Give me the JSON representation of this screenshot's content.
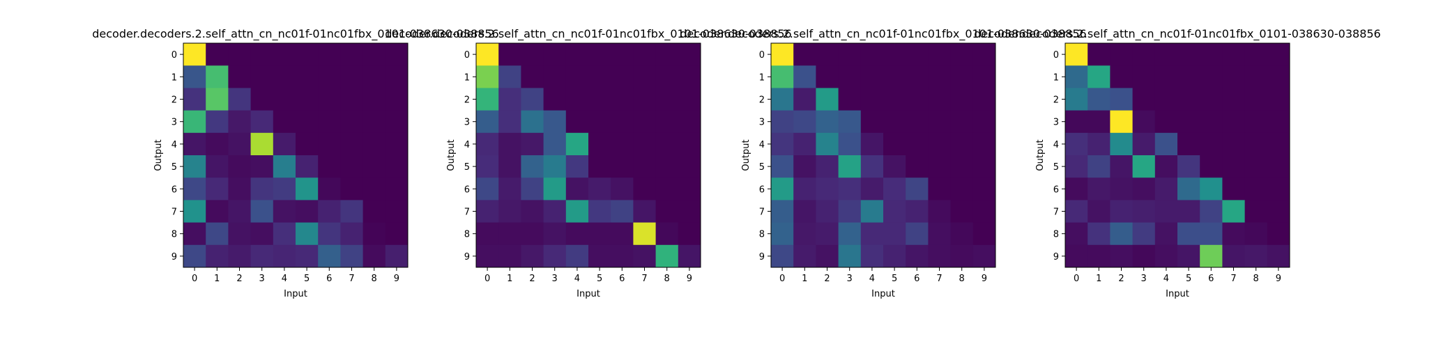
{
  "chart_data": [
    {
      "type": "heatmap",
      "title": "decoder.decoders.2.self_attn_cn_nc01f-01nc01fbx_0101-038630-038856",
      "xlabel": "Input",
      "ylabel": "Output",
      "x_ticks": [
        "0",
        "1",
        "2",
        "3",
        "4",
        "5",
        "6",
        "7",
        "8",
        "9"
      ],
      "y_ticks": [
        "0",
        "1",
        "2",
        "3",
        "4",
        "5",
        "6",
        "7",
        "8",
        "9"
      ],
      "colormap": "viridis",
      "vmin": 0,
      "vmax": 1,
      "values": [
        [
          1.0,
          0,
          0,
          0,
          0,
          0,
          0,
          0,
          0,
          0
        ],
        [
          0.27,
          0.7,
          0,
          0,
          0,
          0,
          0,
          0,
          0,
          0
        ],
        [
          0.15,
          0.74,
          0.16,
          0,
          0,
          0,
          0,
          0,
          0,
          0
        ],
        [
          0.67,
          0.17,
          0.07,
          0.12,
          0,
          0,
          0,
          0,
          0,
          0
        ],
        [
          0.06,
          0.03,
          0.05,
          0.88,
          0.08,
          0,
          0,
          0,
          0,
          0
        ],
        [
          0.45,
          0.06,
          0.03,
          0.04,
          0.43,
          0.1,
          0,
          0,
          0,
          0
        ],
        [
          0.22,
          0.12,
          0.04,
          0.16,
          0.18,
          0.52,
          0.02,
          0,
          0,
          0
        ],
        [
          0.51,
          0.03,
          0.06,
          0.25,
          0.05,
          0.04,
          0.1,
          0.16,
          0,
          0
        ],
        [
          0.04,
          0.22,
          0.05,
          0.04,
          0.14,
          0.47,
          0.16,
          0.1,
          0.01,
          0
        ],
        [
          0.22,
          0.1,
          0.08,
          0.12,
          0.11,
          0.12,
          0.31,
          0.2,
          0.03,
          0.09
        ]
      ]
    },
    {
      "type": "heatmap",
      "title": "decoder.decoders.2.self_attn_cn_nc01f-01nc01fbx_0101-038630-038856",
      "xlabel": "Input",
      "ylabel": "Output",
      "x_ticks": [
        "0",
        "1",
        "2",
        "3",
        "4",
        "5",
        "6",
        "7",
        "8",
        "9"
      ],
      "y_ticks": [
        "0",
        "1",
        "2",
        "3",
        "4",
        "5",
        "6",
        "7",
        "8",
        "9"
      ],
      "colormap": "viridis",
      "vmin": 0,
      "vmax": 1,
      "values": [
        [
          1.0,
          0,
          0,
          0,
          0,
          0,
          0,
          0,
          0,
          0
        ],
        [
          0.8,
          0.2,
          0,
          0,
          0,
          0,
          0,
          0,
          0,
          0
        ],
        [
          0.66,
          0.14,
          0.2,
          0,
          0,
          0,
          0,
          0,
          0,
          0
        ],
        [
          0.3,
          0.14,
          0.38,
          0.28,
          0,
          0,
          0,
          0,
          0,
          0
        ],
        [
          0.12,
          0.05,
          0.07,
          0.28,
          0.6,
          0,
          0,
          0,
          0,
          0
        ],
        [
          0.13,
          0.05,
          0.32,
          0.42,
          0.17,
          0,
          0,
          0,
          0,
          0
        ],
        [
          0.22,
          0.08,
          0.2,
          0.55,
          0.05,
          0.08,
          0.05,
          0,
          0,
          0
        ],
        [
          0.1,
          0.07,
          0.05,
          0.1,
          0.55,
          0.17,
          0.2,
          0.06,
          0,
          0
        ],
        [
          0.03,
          0.03,
          0.03,
          0.05,
          0.03,
          0.03,
          0.03,
          0.95,
          0.02,
          0
        ],
        [
          0.04,
          0.04,
          0.07,
          0.12,
          0.18,
          0.04,
          0.04,
          0.05,
          0.65,
          0.06
        ]
      ]
    },
    {
      "type": "heatmap",
      "title": "decoder.decoders.2.self_attn_cn_nc01f-01nc01fbx_0101-038630-038856",
      "xlabel": "Input",
      "ylabel": "Output",
      "x_ticks": [
        "0",
        "1",
        "2",
        "3",
        "4",
        "5",
        "6",
        "7",
        "8",
        "9"
      ],
      "y_ticks": [
        "0",
        "1",
        "2",
        "3",
        "4",
        "5",
        "6",
        "7",
        "8",
        "9"
      ],
      "colormap": "viridis",
      "vmin": 0,
      "vmax": 1,
      "values": [
        [
          1.0,
          0,
          0,
          0,
          0,
          0,
          0,
          0,
          0,
          0
        ],
        [
          0.7,
          0.25,
          0,
          0,
          0,
          0,
          0,
          0,
          0,
          0
        ],
        [
          0.4,
          0.08,
          0.55,
          0,
          0,
          0,
          0,
          0,
          0,
          0
        ],
        [
          0.2,
          0.22,
          0.32,
          0.28,
          0,
          0,
          0,
          0,
          0,
          0
        ],
        [
          0.16,
          0.1,
          0.45,
          0.25,
          0.06,
          0,
          0,
          0,
          0,
          0
        ],
        [
          0.25,
          0.05,
          0.1,
          0.58,
          0.15,
          0.05,
          0,
          0,
          0,
          0
        ],
        [
          0.55,
          0.1,
          0.12,
          0.14,
          0.08,
          0.13,
          0.21,
          0,
          0,
          0
        ],
        [
          0.3,
          0.06,
          0.1,
          0.18,
          0.42,
          0.12,
          0.1,
          0.03,
          0,
          0
        ],
        [
          0.32,
          0.07,
          0.08,
          0.32,
          0.12,
          0.12,
          0.2,
          0.04,
          0.02,
          0
        ],
        [
          0.22,
          0.08,
          0.05,
          0.4,
          0.14,
          0.1,
          0.06,
          0.04,
          0.03,
          0.04
        ]
      ]
    },
    {
      "type": "heatmap",
      "title": "decoder.decoders.2.self_attn_cn_nc01f-01nc01fbx_0101-038630-038856",
      "xlabel": "Input",
      "ylabel": "Output",
      "x_ticks": [
        "0",
        "1",
        "2",
        "3",
        "4",
        "5",
        "6",
        "7",
        "8",
        "9"
      ],
      "y_ticks": [
        "0",
        "1",
        "2",
        "3",
        "4",
        "5",
        "6",
        "7",
        "8",
        "9"
      ],
      "colormap": "viridis",
      "vmin": 0,
      "vmax": 1,
      "values": [
        [
          1.0,
          0,
          0,
          0,
          0,
          0,
          0,
          0,
          0,
          0
        ],
        [
          0.35,
          0.6,
          0,
          0,
          0,
          0,
          0,
          0,
          0,
          0
        ],
        [
          0.42,
          0.28,
          0.25,
          0,
          0,
          0,
          0,
          0,
          0,
          0
        ],
        [
          0.02,
          0.02,
          1.0,
          0.03,
          0,
          0,
          0,
          0,
          0,
          0
        ],
        [
          0.14,
          0.1,
          0.48,
          0.08,
          0.25,
          0,
          0,
          0,
          0,
          0
        ],
        [
          0.12,
          0.2,
          0.06,
          0.6,
          0.04,
          0.16,
          0,
          0,
          0,
          0
        ],
        [
          0.03,
          0.07,
          0.05,
          0.04,
          0.08,
          0.35,
          0.5,
          0,
          0,
          0
        ],
        [
          0.12,
          0.05,
          0.1,
          0.09,
          0.08,
          0.08,
          0.2,
          0.6,
          0,
          0
        ],
        [
          0.04,
          0.15,
          0.3,
          0.18,
          0.05,
          0.24,
          0.24,
          0.03,
          0.02,
          0
        ],
        [
          0.03,
          0.03,
          0.04,
          0.02,
          0.04,
          0.06,
          0.78,
          0.06,
          0.07,
          0.05
        ]
      ]
    }
  ]
}
